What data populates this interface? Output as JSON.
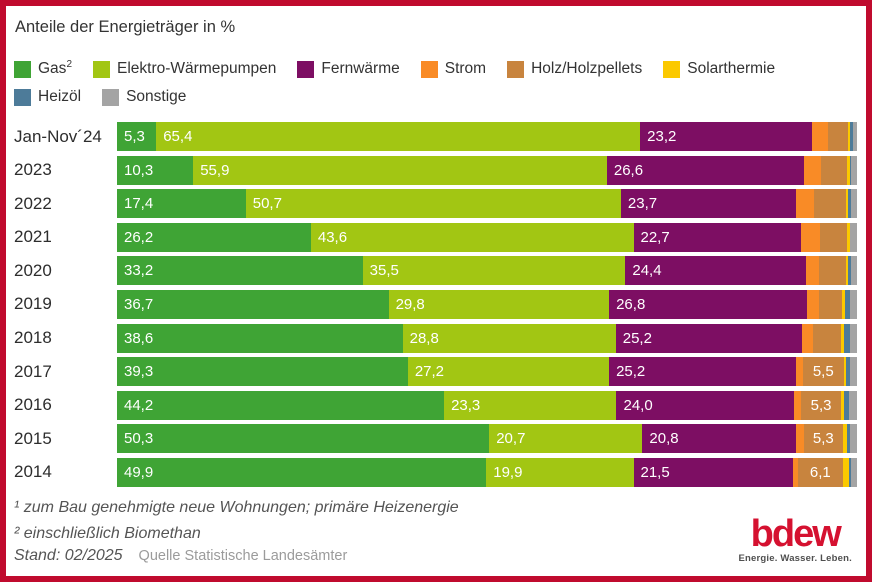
{
  "title": "Anteile der Energieträger in %",
  "colors": {
    "frame_border": "#c00b2e",
    "background": "#ffffff",
    "logo_red": "#d51130",
    "value_label": "#ffffff"
  },
  "legend": {
    "rows": [
      [
        {
          "key": "gas",
          "label": "Gas",
          "sup": "2"
        },
        {
          "key": "wp",
          "label": "Elektro-Wärmepumpen",
          "sup": ""
        },
        {
          "key": "fernwaerme",
          "label": "Fernwärme",
          "sup": ""
        },
        {
          "key": "strom",
          "label": "Strom",
          "sup": ""
        },
        {
          "key": "holz",
          "label": "Holz/Holzpellets",
          "sup": ""
        },
        {
          "key": "solar",
          "label": "Solarthermie",
          "sup": ""
        }
      ],
      [
        {
          "key": "heizoel",
          "label": "Heizöl",
          "sup": ""
        },
        {
          "key": "sonstige",
          "label": "Sonstige",
          "sup": ""
        }
      ]
    ]
  },
  "chart_data": {
    "type": "bar",
    "orientation": "horizontal",
    "stacked": true,
    "unit": "%",
    "title": "Anteile der Energieträger in %",
    "xlabel": "",
    "ylabel": "",
    "xlim": [
      0,
      100
    ],
    "legend_position": "top",
    "grid": false,
    "categories": [
      "Jan-Nov´24",
      "2023",
      "2022",
      "2021",
      "2020",
      "2019",
      "2018",
      "2017",
      "2016",
      "2015",
      "2014"
    ],
    "series": [
      {
        "key": "gas",
        "name": "Gas²",
        "color": "#3fa435",
        "values": [
          5.3,
          10.3,
          17.4,
          26.2,
          33.2,
          36.7,
          38.6,
          39.3,
          44.2,
          50.3,
          49.9
        ],
        "labels": [
          "5,3",
          "10,3",
          "17,4",
          "26,2",
          "33,2",
          "36,7",
          "38,6",
          "39,3",
          "44,2",
          "50,3",
          "49,9"
        ]
      },
      {
        "key": "wp",
        "name": "Elektro-Wärmepumpen",
        "color": "#a2c613",
        "values": [
          65.4,
          55.9,
          50.7,
          43.6,
          35.5,
          29.8,
          28.8,
          27.2,
          23.3,
          20.7,
          19.9
        ],
        "labels": [
          "65,4",
          "55,9",
          "50,7",
          "43,6",
          "35,5",
          "29,8",
          "28,8",
          "27,2",
          "23,3",
          "20,7",
          "19,9"
        ]
      },
      {
        "key": "fernwaerme",
        "name": "Fernwärme",
        "color": "#7d0e63",
        "values": [
          23.2,
          26.6,
          23.7,
          22.7,
          24.4,
          26.8,
          25.2,
          25.2,
          24.0,
          20.8,
          21.5
        ],
        "labels": [
          "23,2",
          "26,6",
          "23,7",
          "22,7",
          "24,4",
          "26,8",
          "25,2",
          "25,2",
          "24,0",
          "20,8",
          "21,5"
        ]
      },
      {
        "key": "strom",
        "name": "Strom",
        "color": "#f98b26",
        "values": [
          2.2,
          2.4,
          2.4,
          2.5,
          1.8,
          1.5,
          1.5,
          1.0,
          1.0,
          1.0,
          0.7
        ],
        "labels": [
          "",
          "",
          "",
          "",
          "",
          "",
          "",
          "",
          "",
          "",
          ""
        ]
      },
      {
        "key": "holz",
        "name": "Holz/Holzpellets",
        "color": "#c8843e",
        "values": [
          2.7,
          3.5,
          4.3,
          3.6,
          3.6,
          3.2,
          3.7,
          5.5,
          5.3,
          5.3,
          6.1
        ],
        "labels": [
          "",
          "",
          "",
          "",
          "",
          "",
          "",
          "5,5",
          "5,3",
          "5,3",
          "6,1"
        ]
      },
      {
        "key": "solar",
        "name": "Solarthermie",
        "color": "#fbc900",
        "values": [
          0.3,
          0.4,
          0.3,
          0.4,
          0.3,
          0.4,
          0.5,
          0.3,
          0.5,
          0.5,
          0.8
        ],
        "labels": [
          "",
          "",
          "",
          "",
          "",
          "",
          "",
          "",
          "",
          "",
          ""
        ]
      },
      {
        "key": "heizoel",
        "name": "Heizöl",
        "color": "#4d7b99",
        "values": [
          0.4,
          0.1,
          0.4,
          0.1,
          0.4,
          0.7,
          0.7,
          0.6,
          0.6,
          0.5,
          0.3
        ],
        "labels": [
          "",
          "",
          "",
          "",
          "",
          "",
          "",
          "",
          "",
          "",
          ""
        ]
      },
      {
        "key": "sonstige",
        "name": "Sonstige",
        "color": "#a4a4a4",
        "values": [
          0.5,
          0.8,
          0.8,
          0.9,
          0.8,
          0.9,
          1.0,
          0.9,
          1.1,
          0.9,
          0.8
        ],
        "labels": [
          "",
          "",
          "",
          "",
          "",
          "",
          "",
          "",
          "",
          "",
          ""
        ]
      }
    ]
  },
  "footnotes": {
    "line1": "¹ zum Bau genehmigte neue Wohnungen; primäre Heizenergie",
    "line2": "² einschließlich Biomethan",
    "stand": "Stand: 02/2025",
    "source": "Quelle Statistische Landesämter"
  },
  "logo": {
    "wordmark": "bdew",
    "tagline": "Energie. Wasser. Leben."
  }
}
